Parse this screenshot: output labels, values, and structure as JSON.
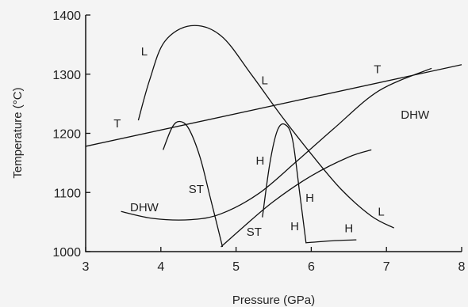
{
  "chart_data": {
    "type": "line",
    "title": "",
    "xlabel": "Pressure (GPa)",
    "ylabel": "Temperature (°C)",
    "xlim": [
      3,
      8
    ],
    "ylim": [
      1000,
      1400
    ],
    "x_ticks": [
      "3",
      "4",
      "5",
      "6",
      "7",
      "8"
    ],
    "y_ticks": [
      "1000",
      "1100",
      "1200",
      "1300",
      "1400"
    ],
    "grid": false,
    "legend": "none",
    "series": [
      {
        "name": "T",
        "points": [
          [
            3.0,
            1178
          ],
          [
            4.0,
            1208
          ],
          [
            5.0,
            1238
          ],
          [
            6.0,
            1266
          ],
          [
            7.0,
            1292
          ],
          [
            8.0,
            1316
          ]
        ]
      },
      {
        "name": "L",
        "points": [
          [
            3.7,
            1222
          ],
          [
            3.85,
            1290
          ],
          [
            4.05,
            1355
          ],
          [
            4.4,
            1382
          ],
          [
            4.8,
            1365
          ],
          [
            5.2,
            1300
          ],
          [
            5.6,
            1230
          ],
          [
            6.0,
            1165
          ],
          [
            6.4,
            1105
          ],
          [
            6.8,
            1060
          ],
          [
            7.1,
            1040
          ]
        ]
      },
      {
        "name": "ST",
        "points": [
          [
            4.03,
            1172
          ],
          [
            4.15,
            1210
          ],
          [
            4.25,
            1220
          ],
          [
            4.37,
            1208
          ],
          [
            4.52,
            1160
          ],
          [
            4.65,
            1095
          ],
          [
            4.82,
            1008
          ]
        ]
      },
      {
        "name": "DHW",
        "points": [
          [
            3.47,
            1068
          ],
          [
            3.9,
            1056
          ],
          [
            4.4,
            1054
          ],
          [
            4.8,
            1064
          ],
          [
            5.3,
            1098
          ],
          [
            5.8,
            1152
          ],
          [
            6.3,
            1208
          ],
          [
            6.9,
            1272
          ],
          [
            7.6,
            1310
          ]
        ]
      },
      {
        "name": "H",
        "points": [
          [
            5.35,
            1058
          ],
          [
            5.45,
            1150
          ],
          [
            5.55,
            1205
          ],
          [
            5.65,
            1215
          ],
          [
            5.75,
            1190
          ],
          [
            5.85,
            1095
          ],
          [
            5.93,
            1015
          ],
          [
            6.25,
            1018
          ],
          [
            6.6,
            1020
          ]
        ]
      },
      {
        "name": "",
        "points": [
          [
            4.8,
            1008
          ],
          [
            5.1,
            1042
          ],
          [
            5.5,
            1085
          ],
          [
            6.0,
            1128
          ],
          [
            6.5,
            1160
          ],
          [
            6.8,
            1172
          ]
        ]
      }
    ],
    "annotations": [
      "T",
      "T",
      "L",
      "L",
      "L",
      "DHW",
      "DHW",
      "ST",
      "ST",
      "H",
      "H",
      "H",
      "H"
    ]
  }
}
